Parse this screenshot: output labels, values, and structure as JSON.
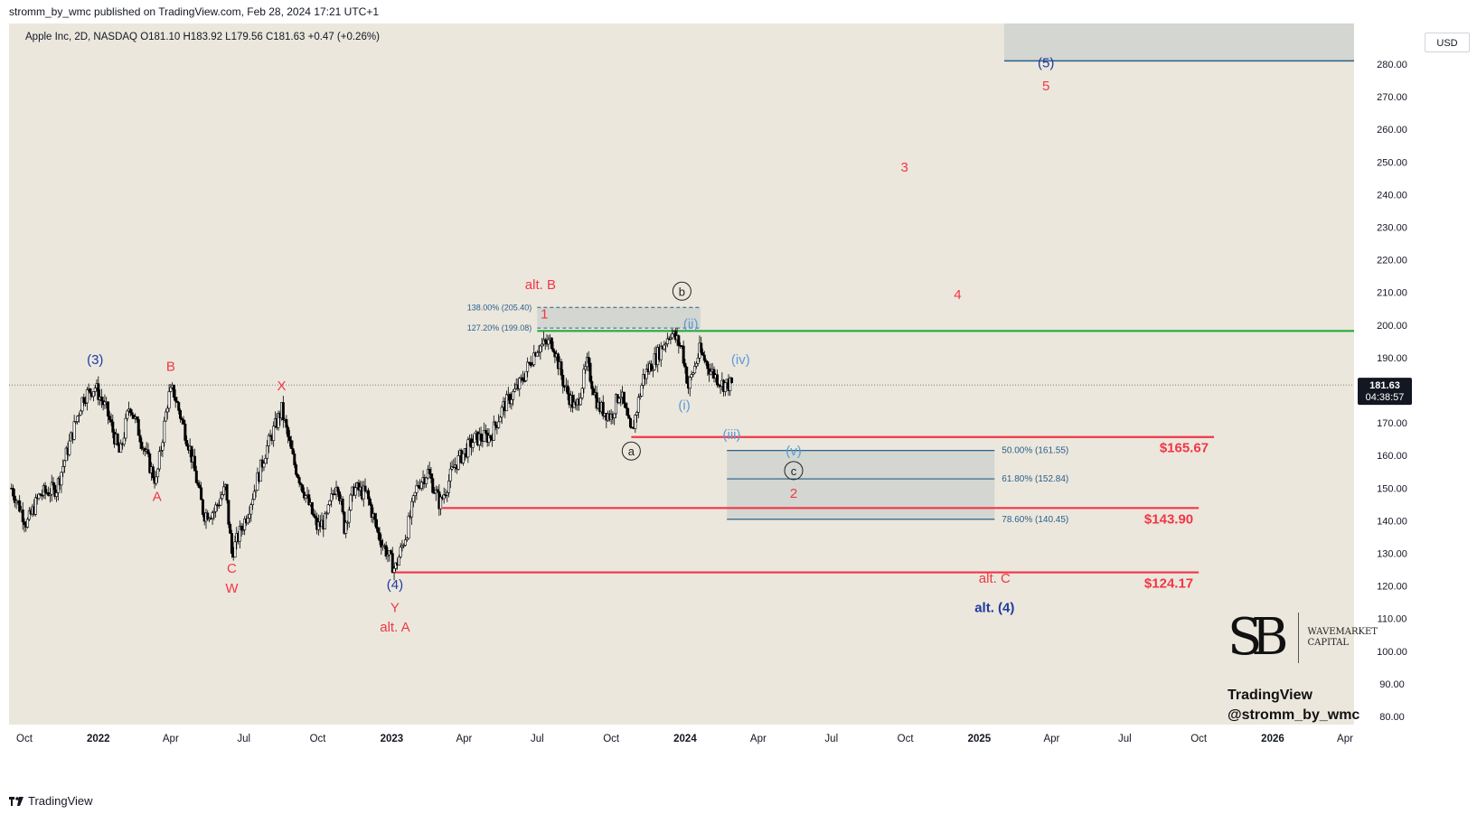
{
  "header": {
    "published_line": "stromm_by_wmc published on TradingView.com, Feb 28, 2024 17:21 UTC+1"
  },
  "legend": {
    "symbol_line": "Apple Inc, 2D, NASDAQ  O181.10  H183.92  L179.56  C181.63  +0.47 (+0.26%)"
  },
  "currency": "USD",
  "footer": {
    "brand": "TradingView"
  },
  "watermark": {
    "monogram": "SB",
    "name_line1": "WAVEMARKET",
    "name_line2": "CAPITAL",
    "platform": "TradingView",
    "handle": "@stromm_by_wmc"
  },
  "colors": {
    "background": "#ebe7dd",
    "candles": "#000000",
    "red": "#f23645",
    "blue_navy": "#1f3a9f",
    "blue_light": "#5b9bd5",
    "green": "#22ab3a",
    "fib_line": "#2a5f8a",
    "box_fill": "#d3d6d1"
  },
  "chart_data": {
    "type": "line",
    "subtype": "candlestick-2D",
    "symbol": "Apple Inc",
    "interval": "2D",
    "exchange": "NASDAQ",
    "ohlc_last": {
      "open": 181.1,
      "high": 183.92,
      "low": 179.56,
      "close": 181.63,
      "change": 0.47,
      "change_pct": 0.26
    },
    "last_price": {
      "price": 181.63,
      "countdown": "04:38:57"
    },
    "ylim": [
      80,
      285
    ],
    "y_ticks": [
      280,
      270,
      260,
      250,
      240,
      230,
      220,
      210,
      200,
      190,
      170,
      160,
      150,
      140,
      130,
      120,
      110,
      100,
      90,
      80
    ],
    "y_tick_labels": [
      "280.00",
      "270.00",
      "260.00",
      "250.00",
      "240.00",
      "230.00",
      "220.00",
      "210.00",
      "200.00",
      "190.00",
      "170.00",
      "160.00",
      "150.00",
      "140.00",
      "130.00",
      "120.00",
      "110.00",
      "100.00",
      "90.00",
      "80.00"
    ],
    "x_ticks": [
      {
        "date": "2021-10-01",
        "label": "Oct",
        "bold": false
      },
      {
        "date": "2022-01-01",
        "label": "2022",
        "bold": true
      },
      {
        "date": "2022-04-01",
        "label": "Apr",
        "bold": false
      },
      {
        "date": "2022-07-01",
        "label": "Jul",
        "bold": false
      },
      {
        "date": "2022-10-01",
        "label": "Oct",
        "bold": false
      },
      {
        "date": "2023-01-01",
        "label": "2023",
        "bold": true
      },
      {
        "date": "2023-04-01",
        "label": "Apr",
        "bold": false
      },
      {
        "date": "2023-07-01",
        "label": "Jul",
        "bold": false
      },
      {
        "date": "2023-10-01",
        "label": "Oct",
        "bold": false
      },
      {
        "date": "2024-01-01",
        "label": "2024",
        "bold": true
      },
      {
        "date": "2024-04-01",
        "label": "Apr",
        "bold": false
      },
      {
        "date": "2024-07-01",
        "label": "Jul",
        "bold": false
      },
      {
        "date": "2024-10-01",
        "label": "Oct",
        "bold": false
      },
      {
        "date": "2025-01-01",
        "label": "2025",
        "bold": true
      },
      {
        "date": "2025-04-01",
        "label": "Apr",
        "bold": false
      },
      {
        "date": "2025-07-01",
        "label": "Jul",
        "bold": false
      },
      {
        "date": "2025-10-01",
        "label": "Oct",
        "bold": false
      },
      {
        "date": "2026-01-01",
        "label": "2026",
        "bold": true
      },
      {
        "date": "2026-04-01",
        "label": "Apr",
        "bold": false
      }
    ],
    "price_path": [
      [
        "2021-09-15",
        150
      ],
      [
        "2021-10-04",
        139
      ],
      [
        "2021-10-20",
        148
      ],
      [
        "2021-11-10",
        150
      ],
      [
        "2021-11-24",
        162
      ],
      [
        "2021-12-13",
        178
      ],
      [
        "2021-12-28",
        181
      ],
      [
        "2022-01-11",
        174
      ],
      [
        "2022-01-28",
        160
      ],
      [
        "2022-02-09",
        176
      ],
      [
        "2022-03-07",
        156
      ],
      [
        "2022-03-14",
        152
      ],
      [
        "2022-03-29",
        178
      ],
      [
        "2022-04-04",
        180
      ],
      [
        "2022-04-25",
        162
      ],
      [
        "2022-05-12",
        142
      ],
      [
        "2022-05-25",
        143
      ],
      [
        "2022-06-08",
        150
      ],
      [
        "2022-06-16",
        130
      ],
      [
        "2022-07-05",
        142
      ],
      [
        "2022-07-29",
        162
      ],
      [
        "2022-08-17",
        174
      ],
      [
        "2022-09-01",
        158
      ],
      [
        "2022-09-30",
        138
      ],
      [
        "2022-10-11",
        140
      ],
      [
        "2022-10-25",
        153
      ],
      [
        "2022-11-03",
        138
      ],
      [
        "2022-11-15",
        150
      ],
      [
        "2022-12-01",
        148
      ],
      [
        "2022-12-15",
        136
      ],
      [
        "2023-01-05",
        125
      ],
      [
        "2023-01-20",
        137
      ],
      [
        "2023-02-02",
        151
      ],
      [
        "2023-02-15",
        155
      ],
      [
        "2023-03-02",
        145
      ],
      [
        "2023-03-20",
        157
      ],
      [
        "2023-04-14",
        165
      ],
      [
        "2023-05-04",
        166
      ],
      [
        "2023-05-20",
        175
      ],
      [
        "2023-06-10",
        182
      ],
      [
        "2023-06-30",
        193
      ],
      [
        "2023-07-20",
        195
      ],
      [
        "2023-08-04",
        181
      ],
      [
        "2023-08-18",
        174
      ],
      [
        "2023-09-01",
        188
      ],
      [
        "2023-09-15",
        175
      ],
      [
        "2023-10-01",
        172
      ],
      [
        "2023-10-12",
        180
      ],
      [
        "2023-10-26",
        166
      ],
      [
        "2023-11-10",
        184
      ],
      [
        "2023-11-28",
        191
      ],
      [
        "2023-12-14",
        198
      ],
      [
        "2023-12-28",
        193
      ],
      [
        "2024-01-05",
        181
      ],
      [
        "2024-01-19",
        192
      ],
      [
        "2024-02-02",
        186
      ],
      [
        "2024-02-16",
        182
      ],
      [
        "2024-02-28",
        181.63
      ]
    ],
    "horizontal_levels": [
      {
        "name": "wave-(ii)-high",
        "value": 198.2,
        "color": "green"
      },
      {
        "name": "wave-a-low",
        "value": 165.67,
        "label": "$165.67",
        "color": "red"
      },
      {
        "name": "alt-level",
        "value": 143.9,
        "label": "$143.90",
        "color": "red"
      },
      {
        "name": "wave-(4)-low",
        "value": 124.17,
        "label": "$124.17",
        "color": "red"
      }
    ],
    "fib_levels": [
      {
        "ratio": "138.00%",
        "price": 205.4,
        "label": "138.00% (205.40)"
      },
      {
        "ratio": "127.20%",
        "price": 199.08,
        "label": "127.20% (199.08)"
      },
      {
        "ratio": "50.00%",
        "price": 161.55,
        "label": "50.00% (161.55)"
      },
      {
        "ratio": "61.80%",
        "price": 152.84,
        "label": "61.80% (152.84)"
      },
      {
        "ratio": "78.60%",
        "price": 140.45,
        "label": "78.60% (140.45)"
      }
    ],
    "target_zone": {
      "from": 281,
      "to": 300
    },
    "wave_labels": [
      {
        "text": "(3)",
        "date": "2021-12-28",
        "price": 188,
        "color": "blue_navy"
      },
      {
        "text": "B",
        "date": "2022-04-01",
        "price": 186,
        "color": "red"
      },
      {
        "text": "A",
        "date": "2022-03-15",
        "price": 146,
        "color": "red"
      },
      {
        "text": "X",
        "date": "2022-08-17",
        "price": 180,
        "color": "red"
      },
      {
        "text": "C",
        "date": "2022-06-16",
        "price": 124,
        "color": "red"
      },
      {
        "text": "W",
        "date": "2022-06-16",
        "price": 118,
        "color": "red"
      },
      {
        "text": "(4)",
        "date": "2023-01-05",
        "price": 119,
        "color": "blue_navy"
      },
      {
        "text": "Y",
        "date": "2023-01-05",
        "price": 112,
        "color": "red"
      },
      {
        "text": "alt. A",
        "date": "2023-01-05",
        "price": 106,
        "color": "red"
      },
      {
        "text": "alt. B",
        "date": "2023-07-05",
        "price": 211,
        "color": "red"
      },
      {
        "text": "1",
        "date": "2023-07-10",
        "price": 202,
        "color": "red"
      },
      {
        "text": "b",
        "date": "2023-12-28",
        "price": 209,
        "circled": true,
        "color": "dark"
      },
      {
        "text": "(ii)",
        "date": "2024-01-08",
        "price": 199,
        "color": "blue_light"
      },
      {
        "text": "(iv)",
        "date": "2024-03-10",
        "price": 188,
        "color": "blue_light"
      },
      {
        "text": "(i)",
        "date": "2023-12-31",
        "price": 174,
        "color": "blue_light"
      },
      {
        "text": "a",
        "date": "2023-10-26",
        "price": 160,
        "circled": true,
        "color": "dark"
      },
      {
        "text": "(iii)",
        "date": "2024-02-28",
        "price": 165,
        "color": "blue_light"
      },
      {
        "text": "(v)",
        "date": "2024-05-15",
        "price": 160,
        "color": "blue_light"
      },
      {
        "text": "c",
        "date": "2024-05-15",
        "price": 154,
        "circled": true,
        "color": "dark"
      },
      {
        "text": "2",
        "date": "2024-05-15",
        "price": 147,
        "color": "red"
      },
      {
        "text": "3",
        "date": "2024-09-30",
        "price": 247,
        "color": "red"
      },
      {
        "text": "4",
        "date": "2024-12-05",
        "price": 208,
        "color": "red"
      },
      {
        "text": "(5)",
        "date": "2025-03-25",
        "price": 279,
        "color": "blue_navy"
      },
      {
        "text": "5",
        "date": "2025-03-25",
        "price": 272,
        "color": "red"
      },
      {
        "text": "alt. C",
        "date": "2025-01-20",
        "price": 121,
        "color": "red"
      },
      {
        "text": "alt. (4)",
        "date": "2025-01-20",
        "price": 112,
        "color": "blue_navy"
      }
    ]
  }
}
